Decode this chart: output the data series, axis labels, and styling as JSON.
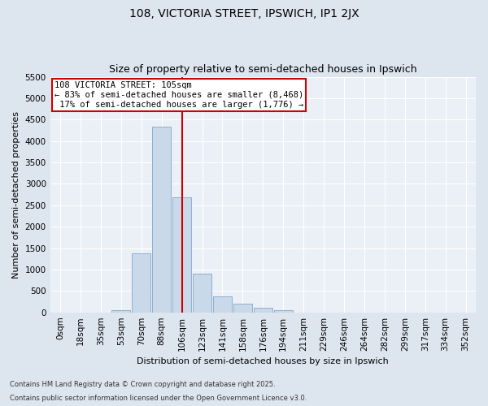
{
  "title": "108, VICTORIA STREET, IPSWICH, IP1 2JX",
  "subtitle": "Size of property relative to semi-detached houses in Ipswich",
  "xlabel": "Distribution of semi-detached houses by size in Ipswich",
  "ylabel": "Number of semi-detached properties",
  "categories": [
    "0sqm",
    "18sqm",
    "35sqm",
    "53sqm",
    "70sqm",
    "88sqm",
    "106sqm",
    "123sqm",
    "141sqm",
    "158sqm",
    "176sqm",
    "194sqm",
    "211sqm",
    "229sqm",
    "246sqm",
    "264sqm",
    "282sqm",
    "299sqm",
    "317sqm",
    "334sqm",
    "352sqm"
  ],
  "values": [
    0,
    0,
    0,
    60,
    1380,
    4340,
    2680,
    900,
    380,
    200,
    110,
    55,
    0,
    0,
    0,
    0,
    0,
    0,
    0,
    0,
    0
  ],
  "bar_color": "#c9d9ea",
  "bar_edgecolor": "#7fa8c8",
  "vline_color": "#cc0000",
  "vline_pos": 6.0,
  "annotation_text": "108 VICTORIA STREET: 105sqm\n← 83% of semi-detached houses are smaller (8,468)\n 17% of semi-detached houses are larger (1,776) →",
  "annotation_box_facecolor": "#ffffff",
  "annotation_box_edgecolor": "#cc0000",
  "ylim": [
    0,
    5500
  ],
  "yticks": [
    0,
    500,
    1000,
    1500,
    2000,
    2500,
    3000,
    3500,
    4000,
    4500,
    5000,
    5500
  ],
  "footer_line1": "Contains HM Land Registry data © Crown copyright and database right 2025.",
  "footer_line2": "Contains public sector information licensed under the Open Government Licence v3.0.",
  "bg_color": "#dde6ef",
  "plot_bg_color": "#eaf0f6",
  "title_fontsize": 10,
  "subtitle_fontsize": 9,
  "axis_label_fontsize": 8,
  "ylabel_fontsize": 8,
  "tick_fontsize": 7.5,
  "footer_fontsize": 6,
  "annotation_fontsize": 7.5
}
